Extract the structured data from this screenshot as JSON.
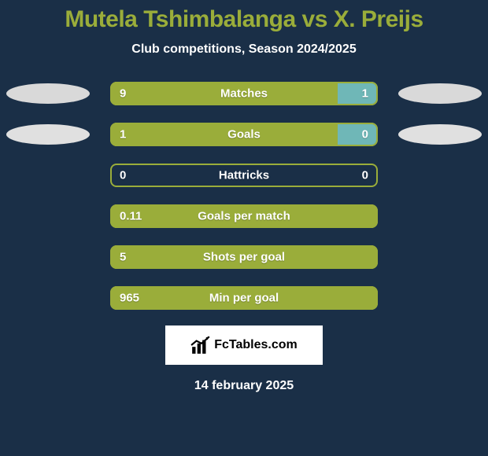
{
  "title": "Mutela Tshimbalanga vs X. Preijs",
  "subtitle": "Club competitions, Season 2024/2025",
  "colors": {
    "background": "#1a2f47",
    "accent": "#9aad3a",
    "barLeft": "#9aad3a",
    "barRight": "#6fb7b7",
    "ellipseRow0": "#d9d9d9",
    "ellipseRow1": "#e0e0e0",
    "text": "#ffffff",
    "logoBg": "#ffffff",
    "logoText": "#000000"
  },
  "stats": [
    {
      "label": "Matches",
      "leftValue": "9",
      "rightValue": "1",
      "leftPct": 85,
      "rightPct": 15,
      "showEllipses": true
    },
    {
      "label": "Goals",
      "leftValue": "1",
      "rightValue": "0",
      "leftPct": 85,
      "rightPct": 15,
      "showEllipses": true
    },
    {
      "label": "Hattricks",
      "leftValue": "0",
      "rightValue": "0",
      "leftPct": 0,
      "rightPct": 0,
      "showEllipses": false
    },
    {
      "label": "Goals per match",
      "leftValue": "0.11",
      "rightValue": "",
      "leftPct": 100,
      "rightPct": 0,
      "showEllipses": false
    },
    {
      "label": "Shots per goal",
      "leftValue": "5",
      "rightValue": "",
      "leftPct": 100,
      "rightPct": 0,
      "showEllipses": false
    },
    {
      "label": "Min per goal",
      "leftValue": "965",
      "rightValue": "",
      "leftPct": 100,
      "rightPct": 0,
      "showEllipses": false
    }
  ],
  "logo": {
    "text": "FcTables.com"
  },
  "date": "14 february 2025"
}
